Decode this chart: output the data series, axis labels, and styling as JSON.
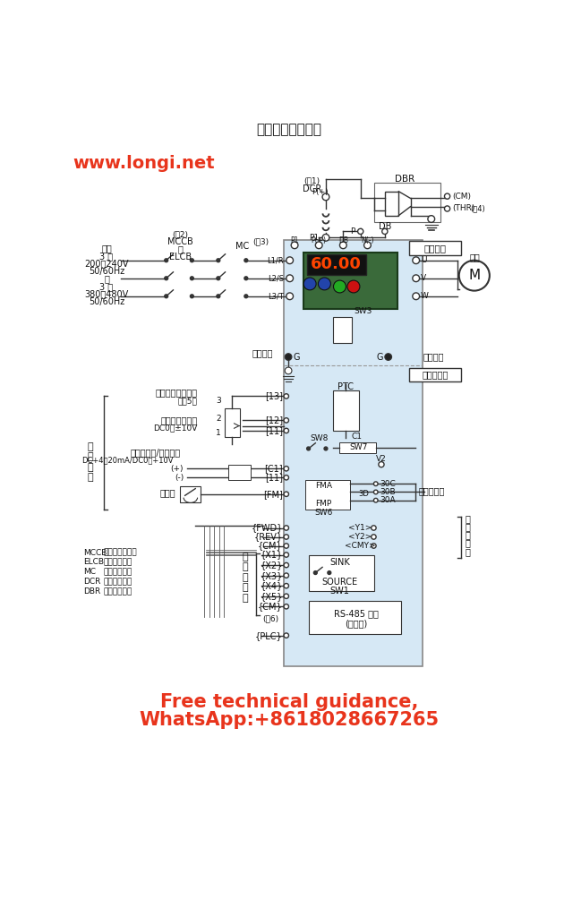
{
  "title": "用外部信号运转时",
  "website": "www.longi.net",
  "bottom_text_line1": "Free technical guidance,",
  "bottom_text_line2": "WhatsApp:+8618028667265",
  "bg_color": "#ffffff",
  "diagram_bg_color": "#d6e8f5",
  "text_color": "#000000",
  "red_color": "#e8341c",
  "blue_color": "#4a90c8",
  "line_color": "#333333",
  "border_color": "#555555"
}
